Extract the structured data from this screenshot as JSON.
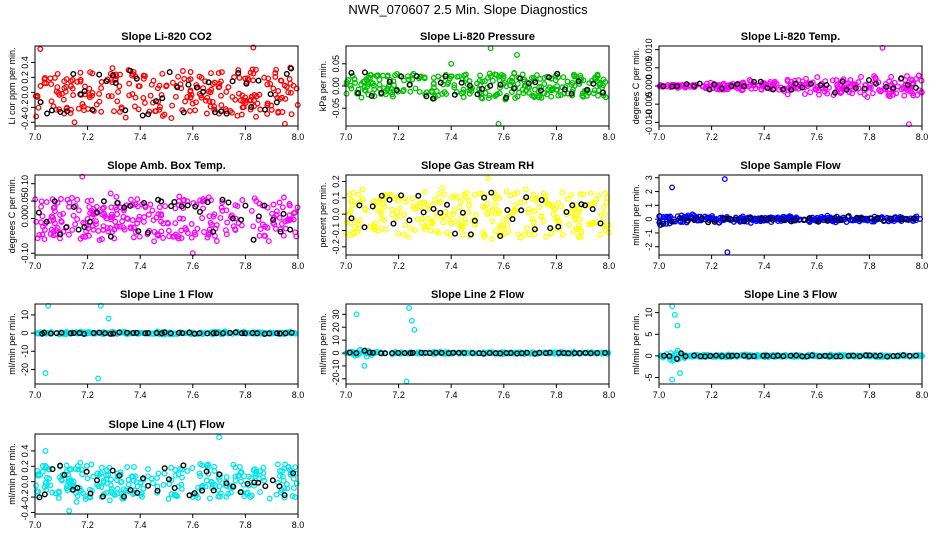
{
  "title": "NWR_070607  2.5 Min. Slope Diagnostics",
  "chart_data": [
    {
      "type": "scatter",
      "title": "Slope Li-820 CO2",
      "ylabel": "Li cor ppm per min.",
      "color": "#ff0000",
      "xlim": [
        7.0,
        8.0
      ],
      "ylim": [
        -0.45,
        0.62
      ],
      "yticks": [
        -0.4,
        -0.2,
        0.0,
        0.2,
        0.4
      ],
      "xticks": [
        7.0,
        7.2,
        7.4,
        7.6,
        7.8,
        8.0
      ],
      "profile": "uniform",
      "spread": 0.36,
      "outliers": [
        [
          7.02,
          0.58
        ],
        [
          7.15,
          -0.4
        ],
        [
          7.83,
          0.6
        ],
        [
          7.95,
          -0.42
        ]
      ],
      "n_colored": 260,
      "n_black": 40
    },
    {
      "type": "scatter",
      "title": "Slope Li-820 Pressure",
      "ylabel": "kPa per min.",
      "color": "#00c000",
      "xlim": [
        7.0,
        8.0
      ],
      "ylim": [
        -0.09,
        0.09
      ],
      "yticks": [
        -0.05,
        0.0,
        0.05
      ],
      "xticks": [
        7.0,
        7.2,
        7.4,
        7.6,
        7.8,
        8.0
      ],
      "profile": "uniform",
      "spread": 0.032,
      "outliers": [
        [
          7.55,
          0.085
        ],
        [
          7.58,
          -0.085
        ],
        [
          7.65,
          0.07
        ],
        [
          7.4,
          0.05
        ]
      ],
      "n_colored": 280,
      "n_black": 35
    },
    {
      "type": "scatter",
      "title": "Slope Li-820 Temp.",
      "ylabel": "degrees C per min.",
      "color": "#ff00ff",
      "xlim": [
        7.0,
        8.0
      ],
      "ylim": [
        -0.011,
        0.011
      ],
      "yticks": [
        -0.01,
        -0.005,
        0.0,
        0.005,
        0.01
      ],
      "xticks": [
        7.0,
        7.2,
        7.4,
        7.6,
        7.8,
        8.0
      ],
      "profile": "funnel",
      "spread": 0.009,
      "outliers": [
        [
          7.85,
          0.0105
        ],
        [
          7.95,
          -0.0105
        ]
      ],
      "n_colored": 280,
      "n_black": 35
    },
    {
      "type": "scatter",
      "title": "Slope Amb. Box Temp.",
      "ylabel": "degrees C per min.",
      "color": "#ff00ff",
      "xlim": [
        7.0,
        8.0
      ],
      "ylim": [
        -0.105,
        0.125
      ],
      "yticks": [
        -0.1,
        0.0,
        0.05,
        0.1
      ],
      "xticks": [
        7.0,
        7.2,
        7.4,
        7.6,
        7.8,
        8.0
      ],
      "profile": "uniform",
      "spread": 0.07,
      "outliers": [
        [
          7.18,
          0.12
        ],
        [
          7.6,
          -0.1
        ]
      ],
      "n_colored": 280,
      "n_black": 40
    },
    {
      "type": "scatter",
      "title": "Slope Gas Stream RH",
      "ylabel": "percent per min.",
      "color": "#ffff00",
      "xlim": [
        7.0,
        8.0
      ],
      "ylim": [
        -0.25,
        0.24
      ],
      "yticks": [
        -0.2,
        -0.1,
        0.0,
        0.1,
        0.2
      ],
      "xticks": [
        7.0,
        7.2,
        7.4,
        7.6,
        7.8,
        8.0
      ],
      "profile": "uniform",
      "spread": 0.16,
      "outliers": [
        [
          7.54,
          0.22
        ]
      ],
      "n_colored": 280,
      "n_black": 35
    },
    {
      "type": "scatter",
      "title": "Slope Sample Flow",
      "ylabel": "ml/min per min.",
      "color": "#0000ff",
      "xlim": [
        7.0,
        8.0
      ],
      "ylim": [
        -2.6,
        3.2
      ],
      "yticks": [
        -2,
        -1,
        0,
        1,
        2,
        3
      ],
      "xticks": [
        7.0,
        7.2,
        7.4,
        7.6,
        7.8,
        8.0
      ],
      "profile": "decay",
      "spread": 0.7,
      "outliers": [
        [
          7.25,
          2.9
        ],
        [
          7.05,
          2.3
        ],
        [
          7.26,
          -2.4
        ]
      ],
      "n_colored": 300,
      "n_black": 35
    },
    {
      "type": "scatter",
      "title": "Slope Line 1 Flow",
      "ylabel": "ml/min per min.",
      "color": "#00e5ee",
      "xlim": [
        7.0,
        8.0
      ],
      "ylim": [
        -28,
        16
      ],
      "yticks": [
        -20,
        -10,
        0,
        10
      ],
      "xticks": [
        7.0,
        7.2,
        7.4,
        7.6,
        7.8,
        8.0
      ],
      "profile": "tight",
      "spread": 2.0,
      "outliers": [
        [
          7.05,
          15
        ],
        [
          7.25,
          15
        ],
        [
          7.04,
          -22
        ],
        [
          7.24,
          -25
        ],
        [
          7.28,
          8
        ]
      ],
      "n_colored": 300,
      "n_black": 45
    },
    {
      "type": "scatter",
      "title": "Slope Line 2 Flow",
      "ylabel": "ml/min per min.",
      "color": "#00e5ee",
      "xlim": [
        7.0,
        8.0
      ],
      "ylim": [
        -24,
        38
      ],
      "yticks": [
        -20,
        -10,
        0,
        10,
        20,
        30
      ],
      "xticks": [
        7.0,
        7.2,
        7.4,
        7.6,
        7.8,
        8.0
      ],
      "profile": "earlyburst",
      "spread": 2.0,
      "outliers": [
        [
          7.04,
          30
        ],
        [
          7.24,
          35
        ],
        [
          7.25,
          25
        ],
        [
          7.26,
          18
        ],
        [
          7.23,
          -22
        ],
        [
          7.07,
          -10
        ]
      ],
      "n_colored": 300,
      "n_black": 45
    },
    {
      "type": "scatter",
      "title": "Slope Line 3 Flow",
      "ylabel": "ml/min per min.",
      "color": "#00e5ee",
      "xlim": [
        7.0,
        8.0
      ],
      "ylim": [
        -6.5,
        12
      ],
      "yticks": [
        -5,
        0,
        5,
        10
      ],
      "xticks": [
        7.0,
        7.2,
        7.4,
        7.6,
        7.8,
        8.0
      ],
      "profile": "earlyburst",
      "spread": 0.8,
      "outliers": [
        [
          7.05,
          11.5
        ],
        [
          7.06,
          9.5
        ],
        [
          7.07,
          7
        ],
        [
          7.05,
          -5.5
        ],
        [
          7.08,
          -4
        ]
      ],
      "n_colored": 300,
      "n_black": 45
    },
    {
      "type": "scatter",
      "title": "Slope Line 4 (LT) Flow",
      "ylabel": "ml/min per min.",
      "color": "#00e5ee",
      "xlim": [
        7.0,
        8.0
      ],
      "ylim": [
        -0.42,
        0.62
      ],
      "yticks": [
        -0.4,
        -0.2,
        0.0,
        0.2,
        0.4
      ],
      "xticks": [
        7.0,
        7.2,
        7.4,
        7.6,
        7.8,
        8.0
      ],
      "profile": "uniform",
      "spread": 0.26,
      "outliers": [
        [
          7.7,
          0.58
        ],
        [
          7.13,
          -0.38
        ],
        [
          7.04,
          0.4
        ]
      ],
      "n_colored": 280,
      "n_black": 40
    }
  ]
}
